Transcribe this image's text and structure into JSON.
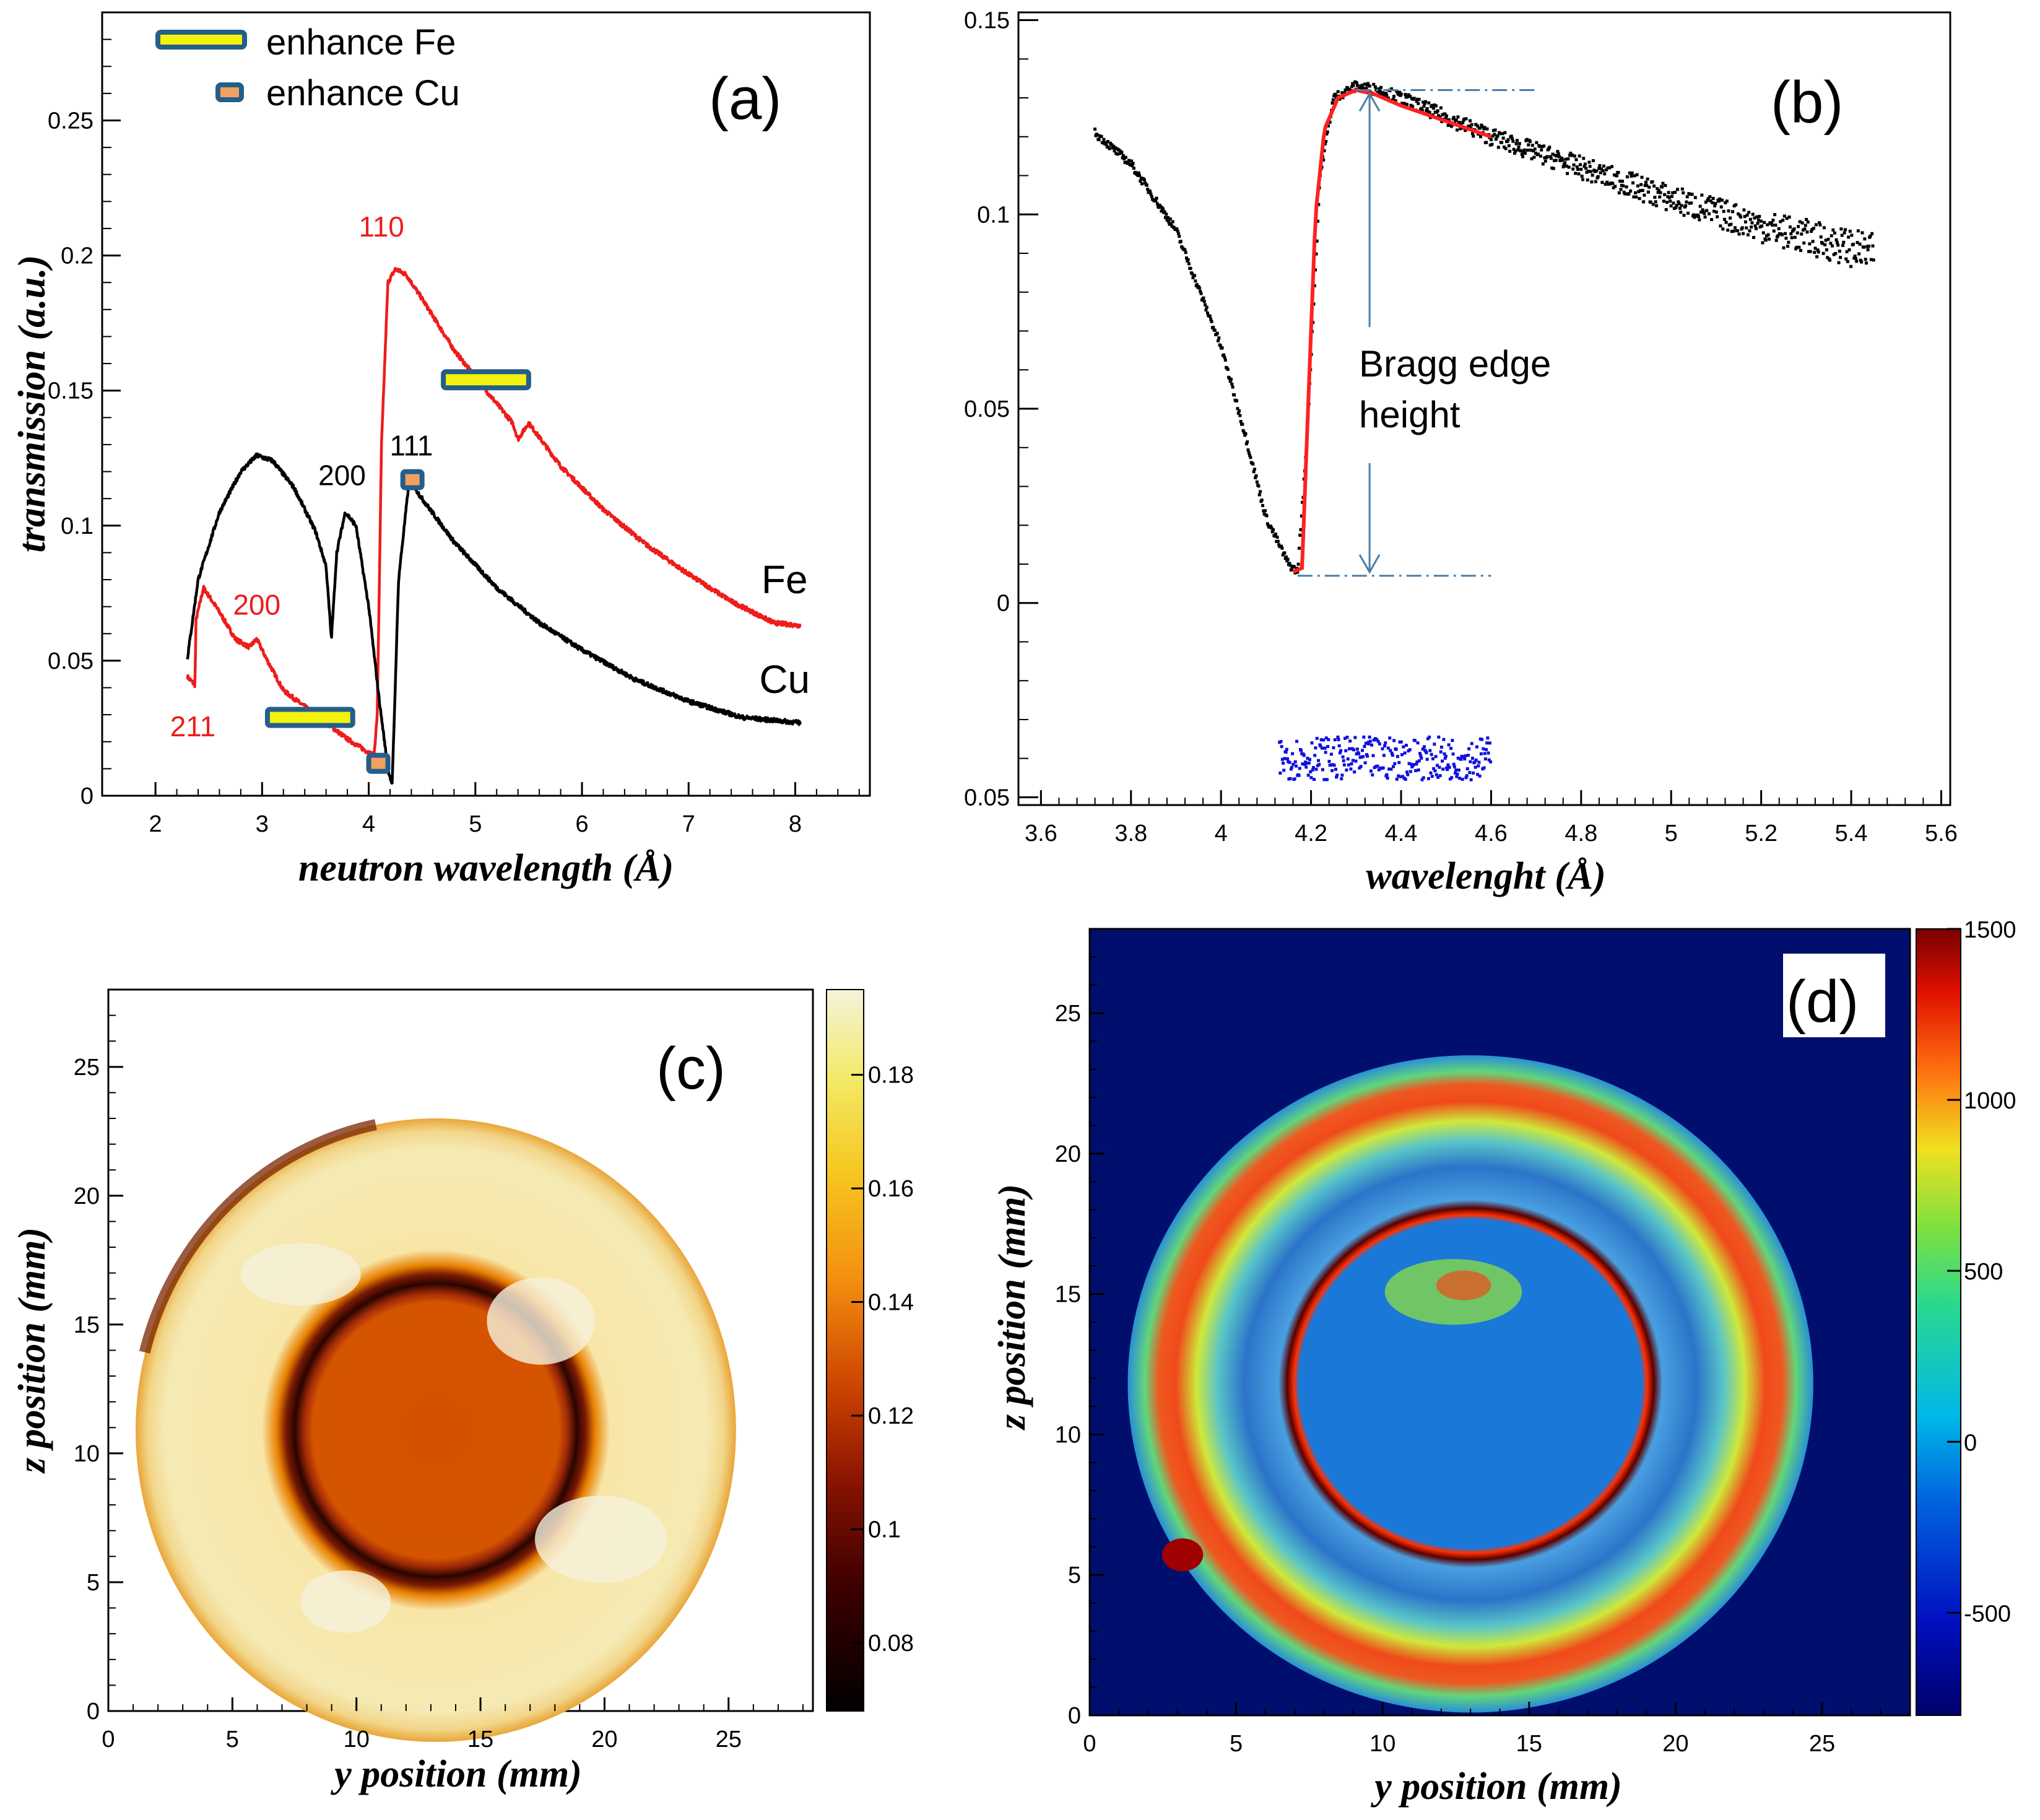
{
  "colors": {
    "fe": "#ee1c1c",
    "cu": "#000000",
    "fit": "#ff2020",
    "residual": "#1010dd",
    "arrow": "#4a7ea8",
    "band_edge": "#245e8a",
    "fe_band": "#f2f20e",
    "cu_band": "#f0a060"
  },
  "chart_data": [
    {
      "id": "a",
      "type": "line",
      "panel_label": "(a)",
      "xlabel": "neutron wavelength  (Å)",
      "ylabel": "transmission  (a.u.)",
      "xlim": [
        1.5,
        8.7
      ],
      "ylim": [
        0,
        0.29
      ],
      "xticks": [
        "2",
        "3",
        "4",
        "5",
        "6",
        "7",
        "8"
      ],
      "yticks": [
        "0",
        "0.05",
        "0.1",
        "0.15",
        "0.2",
        "0.25"
      ],
      "legend": [
        "enhance Fe",
        "enhance Cu"
      ],
      "series": [
        {
          "name": "Fe",
          "x": [
            2.3,
            2.37,
            2.38,
            2.45,
            2.6,
            2.75,
            2.88,
            2.95,
            3.05,
            3.2,
            3.5,
            3.8,
            4.0,
            4.05,
            4.08,
            4.12,
            4.18,
            4.25,
            4.35,
            4.5,
            4.8,
            5.1,
            5.35,
            5.4,
            5.5,
            5.8,
            6.2,
            6.6,
            7.0,
            7.4,
            7.8,
            8.05
          ],
          "y": [
            0.044,
            0.041,
            0.065,
            0.077,
            0.068,
            0.058,
            0.055,
            0.058,
            0.05,
            0.039,
            0.03,
            0.021,
            0.016,
            0.015,
            0.03,
            0.13,
            0.19,
            0.195,
            0.193,
            0.184,
            0.165,
            0.15,
            0.138,
            0.132,
            0.138,
            0.122,
            0.106,
            0.093,
            0.082,
            0.072,
            0.064,
            0.063
          ]
        },
        {
          "name": "Cu",
          "x": [
            2.3,
            2.4,
            2.6,
            2.8,
            2.95,
            3.1,
            3.3,
            3.5,
            3.6,
            3.65,
            3.7,
            3.78,
            3.88,
            4.0,
            4.1,
            4.18,
            4.22,
            4.28,
            4.38,
            4.5,
            4.8,
            5.2,
            5.6,
            6.0,
            6.5,
            7.0,
            7.5,
            8.05
          ],
          "y": [
            0.051,
            0.08,
            0.105,
            0.12,
            0.126,
            0.124,
            0.114,
            0.098,
            0.085,
            0.058,
            0.09,
            0.105,
            0.1,
            0.07,
            0.035,
            0.01,
            0.004,
            0.08,
            0.117,
            0.11,
            0.094,
            0.077,
            0.064,
            0.054,
            0.043,
            0.035,
            0.029,
            0.027
          ]
        }
      ],
      "annotations": [
        {
          "text": "110",
          "series": "Fe",
          "x": 4.12,
          "y": 0.207
        },
        {
          "text": "200",
          "series": "Fe",
          "x": 2.95,
          "y": 0.067
        },
        {
          "text": "211",
          "series": "Fe",
          "x": 2.35,
          "y": 0.022
        },
        {
          "text": "200",
          "series": "Cu",
          "x": 3.75,
          "y": 0.115
        },
        {
          "text": "111",
          "series": "Cu",
          "x": 4.4,
          "y": 0.126
        },
        {
          "text": "Fe",
          "series": "Fe",
          "x": 7.9,
          "y": 0.075
        },
        {
          "text": "Cu",
          "series": "Cu",
          "x": 7.9,
          "y": 0.038
        }
      ],
      "bands": [
        {
          "kind": "fe",
          "x0": 3.05,
          "x1": 3.85,
          "y": 0.029
        },
        {
          "kind": "fe",
          "x0": 4.7,
          "x1": 5.5,
          "y": 0.154
        },
        {
          "kind": "cu",
          "x0": 4.0,
          "x1": 4.18,
          "y": 0.012
        },
        {
          "kind": "cu",
          "x0": 4.32,
          "x1": 4.5,
          "y": 0.117
        }
      ]
    },
    {
      "id": "b",
      "type": "scatter",
      "panel_label": "(b)",
      "xlabel": "wavelenght  (Å)",
      "ylabel": "",
      "xlim": [
        3.55,
        5.62
      ],
      "ylim": [
        -0.052,
        0.152
      ],
      "xticks": [
        "3.6",
        "3.8",
        "4",
        "4.2",
        "4.4",
        "4.6",
        "4.8",
        "5",
        "5.2",
        "5.4",
        "5.6"
      ],
      "yticks": [
        "0",
        "0.05",
        "0.1",
        "0.15"
      ],
      "ytick_labels": [
        "0",
        "0.05",
        "0.1",
        "0.15"
      ],
      "ytick_bottom": "0.05",
      "series": [
        {
          "name": "data",
          "x": [
            3.72,
            3.8,
            3.9,
            4.0,
            4.05,
            4.1,
            4.15,
            4.17,
            4.19,
            4.22,
            4.25,
            4.3,
            4.35,
            4.4,
            4.5,
            4.6,
            4.8,
            5.0,
            5.2,
            5.45
          ],
          "y": [
            0.121,
            0.113,
            0.096,
            0.066,
            0.045,
            0.022,
            0.01,
            0.008,
            0.04,
            0.11,
            0.13,
            0.133,
            0.132,
            0.13,
            0.125,
            0.12,
            0.112,
            0.104,
            0.097,
            0.09
          ]
        },
        {
          "name": "fit",
          "x": [
            4.16,
            4.18,
            4.19,
            4.21,
            4.23,
            4.26,
            4.3,
            4.34,
            4.4,
            4.5,
            4.6
          ],
          "y": [
            0.008,
            0.009,
            0.04,
            0.1,
            0.122,
            0.13,
            0.132,
            0.131,
            0.128,
            0.124,
            0.12
          ]
        },
        {
          "name": "residual",
          "x0": 4.13,
          "x1": 4.6,
          "y": -0.04
        }
      ],
      "annotation": {
        "line1": "Bragg edge",
        "line2": "height"
      },
      "edge_levels": {
        "top": 0.132,
        "bottom": 0.007
      }
    },
    {
      "id": "c",
      "type": "heatmap",
      "panel_label": "(c)",
      "xlabel": "y position  (mm)",
      "ylabel": "z position  (mm)",
      "xlim": [
        0,
        28.4
      ],
      "ylim": [
        0,
        28
      ],
      "xticks": [
        "0",
        "5",
        "10",
        "15",
        "20",
        "25"
      ],
      "yticks": [
        "0",
        "5",
        "10",
        "15",
        "20",
        "25"
      ],
      "colorbar": {
        "min": 0.068,
        "max": 0.195,
        "ticks": [
          "0.08",
          "0.1",
          "0.12",
          "0.14",
          "0.16",
          "0.18"
        ]
      },
      "disk_center": [
        13.2,
        10.9
      ],
      "disk_radius": 12.1,
      "inner_radius": 5.7
    },
    {
      "id": "d",
      "type": "heatmap",
      "panel_label": "(d)",
      "xlabel": "y position  (mm)",
      "ylabel": "z position  (mm)",
      "xlim": [
        0,
        28
      ],
      "ylim": [
        0,
        28
      ],
      "xticks": [
        "0",
        "5",
        "10",
        "15",
        "20",
        "25"
      ],
      "yticks": [
        "0",
        "5",
        "10",
        "15",
        "20",
        "25"
      ],
      "colorbar": {
        "min": -800,
        "max": 1500,
        "ticks": [
          "-500",
          "0",
          "500",
          "1000",
          "1500"
        ]
      },
      "disk_center": [
        13.0,
        11.8
      ],
      "disk_radius": 11.7,
      "inner_radius": 6.1
    }
  ]
}
